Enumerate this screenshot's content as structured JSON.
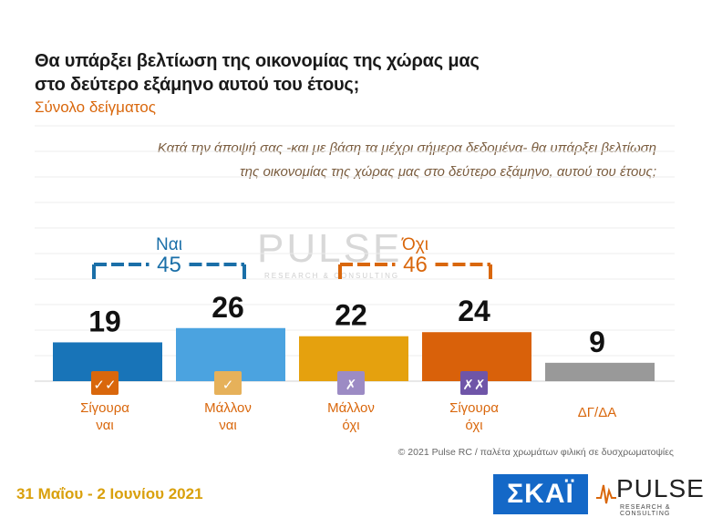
{
  "header": {
    "title_line1": "Θα υπάρξει βελτίωση της οικονομίας της χώρας μας",
    "title_line2": "στο δεύτερο εξάμηνο αυτού του έτους;",
    "subtitle": "Σύνολο δείγματος"
  },
  "question": {
    "line1": "Κατά την άποψή σας -και με βάση τα μέχρι σήμερα δεδομένα- θα υπάρξει βελτίωση",
    "line2": "της οικονομίας της χώρας μας στο δεύτερο εξάμηνο, αυτού του έτους;"
  },
  "chart_data": {
    "type": "bar",
    "categories": [
      "Σίγουρα ναι",
      "Μάλλον ναι",
      "Μάλλον όχι",
      "Σίγουρα όχι",
      "ΔΓ/ΔΑ"
    ],
    "category_lines": [
      [
        "Σίγουρα",
        "ναι"
      ],
      [
        "Μάλλον",
        "ναι"
      ],
      [
        "Μάλλον",
        "όχι"
      ],
      [
        "Σίγουρα",
        "όχι"
      ],
      [
        "ΔΓ/ΔΑ"
      ]
    ],
    "values": [
      19,
      26,
      22,
      24,
      9
    ],
    "colors": [
      "#1874b8",
      "#4ba3e0",
      "#e5a10e",
      "#d9610a",
      "#999999"
    ],
    "icons": [
      "✓✓",
      "✓",
      "✗",
      "✗✗",
      ""
    ],
    "icon_colors": [
      "#d9670c",
      "#e6b15a",
      "#9c8bc4",
      "#6f55a8",
      ""
    ],
    "groups": [
      {
        "label": "Ναι",
        "total": "45",
        "color": "#1a6fa8",
        "from": 0,
        "to": 1
      },
      {
        "label": "Όχι",
        "total": "46",
        "color": "#d9670c",
        "from": 2,
        "to": 3
      }
    ],
    "grid": true,
    "legend": "none"
  },
  "watermark": {
    "word": "PULSE",
    "sub": "RESEARCH & CONSULTING"
  },
  "footer": {
    "date": "31 Μαΐου - 2 Ιουνίου 2021",
    "copyright": "© 2021 Pulse RC  /  παλέτα χρωμάτων φιλική σε δυσχρωματοψίες",
    "skai_logo": "ΣΚΑΪ",
    "pulse_logo": "PULSE",
    "pulse_sub": "RESEARCH & CONSULTING"
  }
}
